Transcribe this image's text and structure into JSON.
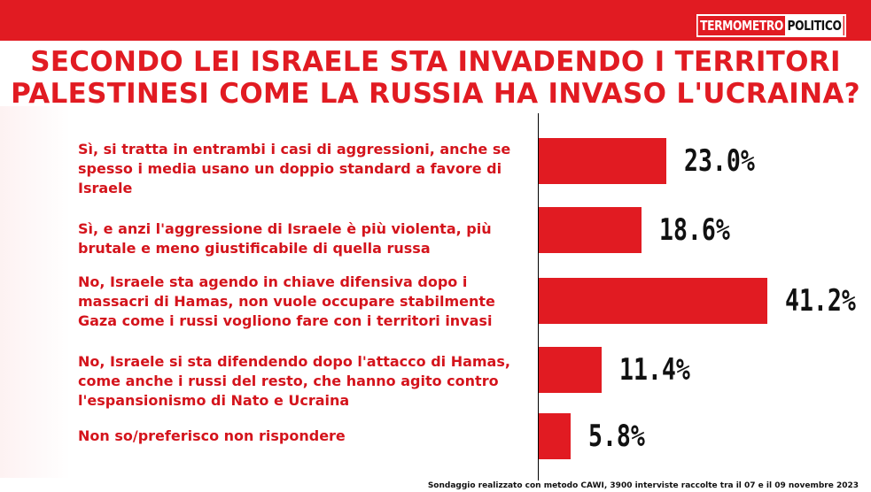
{
  "logo": {
    "part1": "TERMOMETRO",
    "part2": "POLITICO"
  },
  "title_line1": "SECONDO LEI ISRAELE STA INVADENDO I TERRITORI",
  "title_line2": "PALESTINESI COME LA RUSSIA HA INVASO L'UCRAINA?",
  "footer": "Sondaggio realizzato con metodo CAWI, 3900 interviste raccolte tra il 07 e il 09 novembre 2023",
  "colors": {
    "accent": "#e11b22",
    "label": "#d4141c"
  },
  "chart_data": {
    "type": "bar",
    "orientation": "horizontal",
    "title": "SECONDO LEI ISRAELE STA INVADENDO I TERRITORI PALESTINESI COME LA RUSSIA HA INVASO L'UCRAINA?",
    "categories": [
      "Sì, si tratta in entrambi i casi di aggressioni, anche se spesso i media usano un doppio standard a favore di Israele",
      "Sì, e anzi l'aggressione di Israele è più violenta, più brutale e meno giustificabile di quella russa",
      "No, Israele sta agendo in chiave difensiva dopo i massacri di Hamas, non vuole occupare stabilmente Gaza come i russi vogliono fare con i territori invasi",
      "No, Israele si sta difendendo dopo l'attacco di Hamas, come anche i russi del resto, che hanno agito contro l'espansionismo di Nato e Ucraina",
      "Non so/preferisco non rispondere"
    ],
    "values": [
      23.0,
      18.6,
      41.2,
      11.4,
      5.8
    ],
    "value_labels": [
      "23.0%",
      "18.6%",
      "41.2%",
      "11.4%",
      "5.8%"
    ],
    "xlim": [
      0,
      41.2
    ],
    "grid": false
  }
}
